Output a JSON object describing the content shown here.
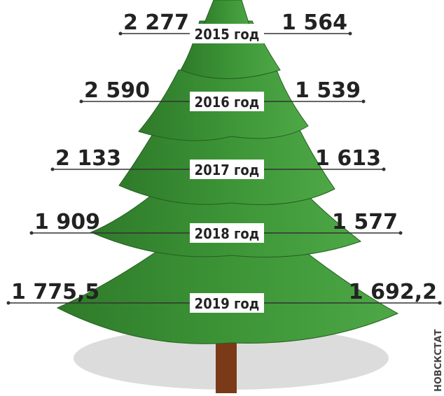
{
  "rows": [
    {
      "year": "2015 год",
      "left": "2 277",
      "right": "1 564"
    },
    {
      "year": "2016 год",
      "left": "2 590",
      "right": "1 539"
    },
    {
      "year": "2017 год",
      "left": "2 133",
      "right": "1 613"
    },
    {
      "year": "2018 год",
      "left": "1 909",
      "right": "1 577"
    },
    {
      "year": "2019 год",
      "left": "1 775,5",
      "right": "1 692,2"
    }
  ],
  "source": "НОВСКСТАТ"
}
